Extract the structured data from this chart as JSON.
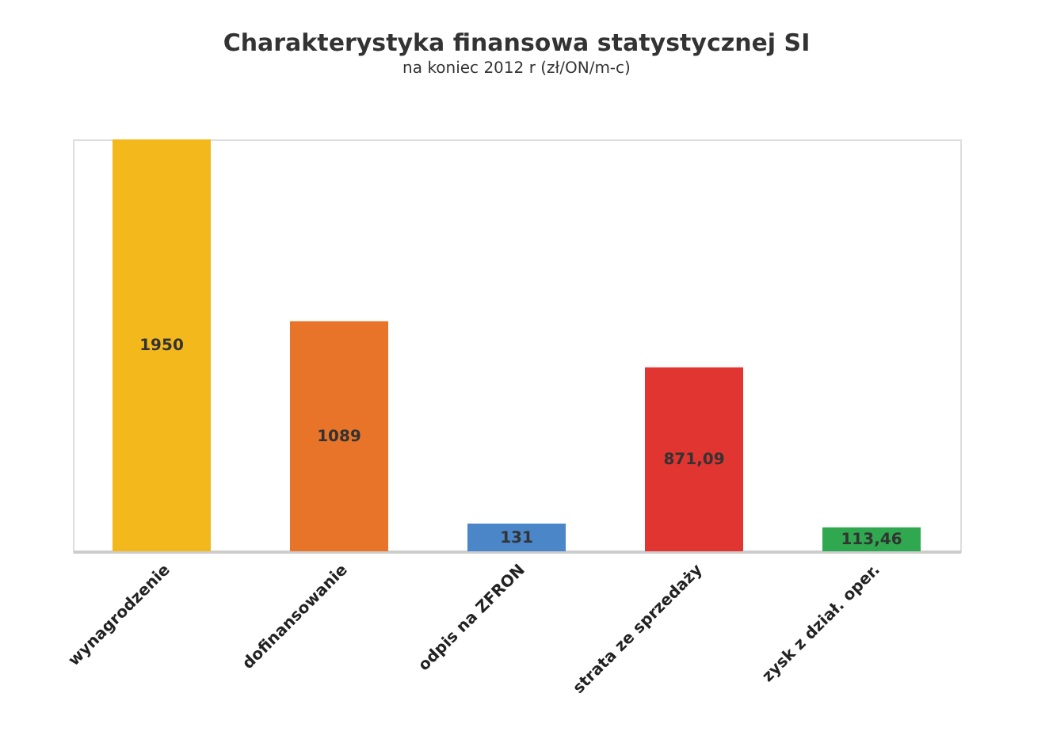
{
  "chart_data": {
    "type": "bar",
    "title": "Charakterystyka finansowa statystycznej SI",
    "subtitle": "na koniec 2012 r  (zł/ON/m-c)",
    "categories": [
      "wynagrodzenie",
      "dofinansowanie",
      "odpis na ZFRON",
      "strata ze sprzedaży",
      "zysk z dział. oper."
    ],
    "values": [
      1950,
      1089,
      131,
      871.09,
      113.46
    ],
    "value_labels": [
      "1950",
      "1089",
      "131",
      "871,09",
      "113,46"
    ],
    "colors": [
      "#f2b81c",
      "#e8742a",
      "#4a86c8",
      "#e03530",
      "#2fa84f"
    ],
    "grid": false,
    "legend": false
  }
}
